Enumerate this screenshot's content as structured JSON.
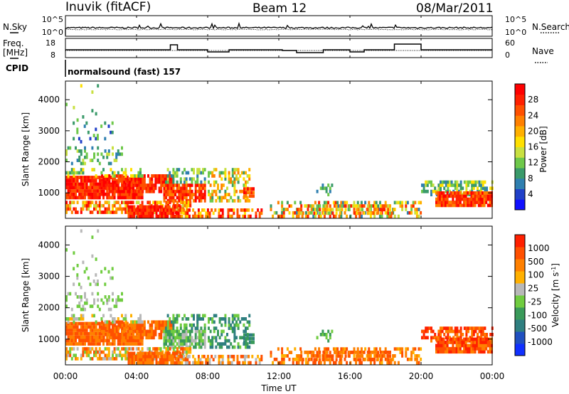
{
  "header": {
    "title": "Inuvik (fitACF)",
    "beam": "Beam 12",
    "date": "08/Mar/2011"
  },
  "strip_panels": {
    "nsky_label": "N.Sky",
    "nsearch_label": "N.Search",
    "noise_ticks_left": [
      "10^5",
      "10^0"
    ],
    "noise_ticks_right": [
      "10^5",
      "10^0"
    ],
    "freq_label_1": "Freq.",
    "freq_label_2": "[MHz]",
    "freq_ticks": [
      "18",
      "8"
    ],
    "nave_label": "Nave",
    "nave_ticks": [
      "60",
      "0"
    ],
    "cpid_label": "CPID",
    "cpid_text": "normalsound (fast) 157"
  },
  "chart_data": [
    {
      "type": "heatmap",
      "panel": "power",
      "ylabel": "Slant Range [km]",
      "yticks": [
        "1000",
        "2000",
        "3000",
        "4000"
      ],
      "ylim": [
        180,
        4600
      ],
      "colorbar_label": "Power [dB]",
      "colorbar_ticks": [
        "28",
        "24",
        "20",
        "16",
        "12",
        "8",
        "4"
      ],
      "colors": [
        "#1010ff",
        "#2040c8",
        "#2f7fb0",
        "#3a9a6a",
        "#6ec84a",
        "#c8e040",
        "#ffe000",
        "#ffb000",
        "#ff8000",
        "#ff5000",
        "#ff2000",
        "#ff0000"
      ]
    },
    {
      "type": "heatmap",
      "panel": "velocity",
      "ylabel": "Slant Range [km]",
      "yticks": [
        "1000",
        "2000",
        "3000",
        "4000"
      ],
      "ylim": [
        180,
        4600
      ],
      "colorbar_label": "Velocity [m s^-1]",
      "colorbar_ticks": [
        "1000",
        "500",
        "100",
        "25",
        "-25",
        "-100",
        "-500",
        "-1000"
      ],
      "colors": [
        "#1030ff",
        "#2050c0",
        "#2f7f80",
        "#3a9a5a",
        "#70cc40",
        "#b8b8b8",
        "#ffb000",
        "#ff8000",
        "#ff5000",
        "#ff2000"
      ]
    }
  ],
  "xaxis": {
    "label": "Time UT",
    "ticks": [
      "00:00",
      "04:00",
      "08:00",
      "12:00",
      "16:00",
      "20:00",
      "00:00"
    ]
  }
}
